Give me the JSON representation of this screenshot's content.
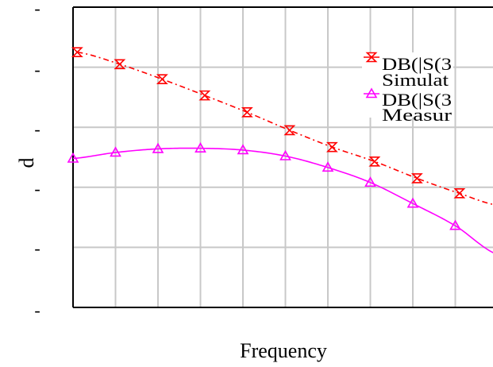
{
  "chart_data": {
    "type": "line",
    "title": "",
    "xlabel": "Frequency",
    "ylabel": "d",
    "xlim": [
      0,
      10
    ],
    "ylim": [
      -5,
      0
    ],
    "x_tick_labels": [
      "",
      "",
      "",
      "",
      "",
      "",
      "",
      "",
      "",
      "",
      ""
    ],
    "y_tick_labels": [
      "-",
      "-",
      "-",
      "-",
      "-",
      "-"
    ],
    "grid": true,
    "legend_position": "top-right",
    "series": [
      {
        "name": "DB(|S(3",
        "name_line2": "Simulat",
        "color": "#ff0000",
        "marker": "hourglass",
        "line_style": "dash-dot",
        "points": [
          [
            0.1,
            -0.75
          ],
          [
            1.1,
            -0.95
          ],
          [
            2.1,
            -1.2
          ],
          [
            3.1,
            -1.47
          ],
          [
            4.1,
            -1.75
          ],
          [
            5.1,
            -2.05
          ],
          [
            6.1,
            -2.33
          ],
          [
            7.1,
            -2.57
          ],
          [
            8.1,
            -2.85
          ],
          [
            9.1,
            -3.1
          ],
          [
            10,
            -3.3
          ]
        ],
        "marker_x": [
          0.1,
          1.1,
          2.1,
          3.1,
          4.1,
          5.1,
          6.1,
          7.1,
          8.1,
          9.1
        ]
      },
      {
        "name": "DB(|S(3",
        "name_line2": "Measur",
        "color": "#ff00ff",
        "marker": "triangle",
        "line_style": "solid",
        "points": [
          [
            0,
            -2.52
          ],
          [
            1,
            -2.42
          ],
          [
            2,
            -2.36
          ],
          [
            3,
            -2.35
          ],
          [
            4,
            -2.38
          ],
          [
            5,
            -2.48
          ],
          [
            6,
            -2.67
          ],
          [
            7,
            -2.92
          ],
          [
            8,
            -3.27
          ],
          [
            9,
            -3.64
          ],
          [
            10,
            -4.12
          ]
        ],
        "marker_x": [
          0,
          1,
          2,
          3,
          4,
          5,
          6,
          7,
          8,
          9
        ]
      }
    ]
  }
}
